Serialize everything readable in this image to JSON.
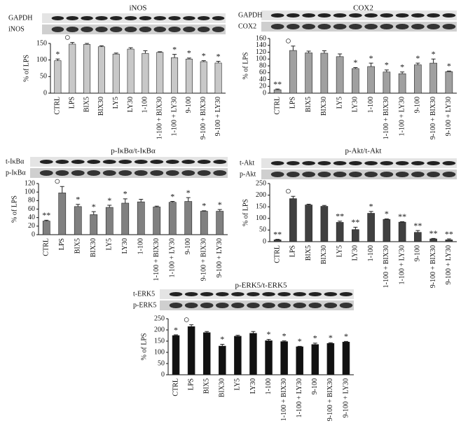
{
  "chart_data": [
    {
      "type": "bar",
      "title": "iNOS",
      "blot_labels": [
        "GAPDH",
        "iNOS"
      ],
      "y_label": "% of LPS",
      "color": "#c8c8c8",
      "categories": [
        "CTRL",
        "LPS",
        "BIX5",
        "BIX30",
        "LY5",
        "LY30",
        "1-100",
        "1-100 + BIX30",
        "1-100 + LY30",
        "9-100",
        "9-100 + BIX30",
        "9-100 + LY30"
      ],
      "values": [
        98,
        148,
        147,
        140,
        118,
        133,
        120,
        123,
        107,
        103,
        95,
        91
      ],
      "errors": [
        5,
        5,
        3,
        3,
        3,
        4,
        8,
        2,
        10,
        3,
        3,
        5
      ],
      "annotations": [
        "*",
        "○",
        null,
        null,
        null,
        null,
        null,
        null,
        "*",
        "*",
        "*",
        "*"
      ],
      "ylim": [
        0,
        150
      ],
      "yticks": [
        0,
        50,
        100,
        150
      ]
    },
    {
      "type": "bar",
      "title": "COX2",
      "blot_labels": [
        "GAPDH",
        "COX2"
      ],
      "y_label": "% of LPS",
      "color": "#a0a0a0",
      "categories": [
        "CTRL",
        "LPS",
        "BIX5",
        "BIX30",
        "LY5",
        "LY30",
        "1-100",
        "1-100 + BIX30",
        "1-100 + LY30",
        "9-100",
        "9-100 + BIX30",
        "9-100 + LY30"
      ],
      "values": [
        10,
        125,
        118,
        117,
        107,
        72,
        78,
        62,
        57,
        83,
        88,
        63
      ],
      "errors": [
        2,
        13,
        5,
        7,
        8,
        3,
        10,
        6,
        5,
        5,
        12,
        2
      ],
      "annotations": [
        "**",
        "○",
        null,
        null,
        null,
        "*",
        "*",
        "*",
        "*",
        "*",
        "*",
        "*"
      ],
      "ylim": [
        0,
        160
      ],
      "yticks": [
        0,
        20,
        40,
        60,
        80,
        100,
        120,
        140,
        160
      ]
    },
    {
      "type": "bar",
      "title": "p-IκBα/t-IκBα",
      "blot_labels": [
        "t-IκBα",
        "p-IκBα"
      ],
      "y_label": "% of LPS",
      "color": "#808080",
      "categories": [
        "CTRL",
        "LPS",
        "BIX5",
        "BIX30",
        "LY5",
        "LY30",
        "1-100",
        "1-100 + BIX30",
        "1-100 + LY30",
        "9-100",
        "9-100 + BIX30",
        "9-100 + LY30"
      ],
      "values": [
        32,
        98,
        66,
        47,
        64,
        74,
        77,
        65,
        76,
        78,
        55,
        55
      ],
      "errors": [
        2,
        15,
        5,
        7,
        5,
        10,
        6,
        2,
        2,
        9,
        1,
        4
      ],
      "annotations": [
        "**",
        "○",
        "*",
        "*",
        "*",
        "*",
        null,
        null,
        "*",
        "*",
        "*",
        "*"
      ],
      "ylim": [
        0,
        120
      ],
      "yticks": [
        0,
        20,
        40,
        60,
        80,
        100,
        120
      ]
    },
    {
      "type": "bar",
      "title": "p-Akt/t-Akt",
      "blot_labels": [
        "t-Akt",
        "p-Akt"
      ],
      "y_label": "% of LPS",
      "color": "#404040",
      "categories": [
        "CTRL",
        "LPS",
        "BIX5",
        "BIX30",
        "LY5",
        "LY30",
        "1-100",
        "1-100 + BIX30",
        "1-100 + LY30",
        "9-100",
        "9-100 + BIX30",
        "9-100 + LY30"
      ],
      "values": [
        8,
        185,
        158,
        152,
        83,
        52,
        122,
        96,
        84,
        40,
        12,
        8
      ],
      "errors": [
        2,
        10,
        3,
        4,
        5,
        10,
        8,
        2,
        2,
        8,
        2,
        4
      ],
      "annotations": [
        "**",
        "○",
        null,
        null,
        "**",
        "**",
        "*",
        "*",
        "**",
        "**",
        "**",
        "**"
      ],
      "ylim": [
        0,
        250
      ],
      "yticks": [
        0,
        50,
        100,
        150,
        200,
        250
      ]
    },
    {
      "type": "bar",
      "title": "p-ERK5/t-ERK5",
      "blot_labels": [
        "t-ERK5",
        "p-ERK5"
      ],
      "y_label": "% of LPS",
      "color": "#111111",
      "categories": [
        "CTRL",
        "LPS",
        "BIX5",
        "BIX30",
        "LY5",
        "LY30",
        "1-100",
        "1-100 + BIX30",
        "1-100 + LY30",
        "9-100",
        "9-100 + BIX30",
        "9-100 + LY30"
      ],
      "values": [
        175,
        215,
        188,
        128,
        172,
        185,
        152,
        148,
        125,
        135,
        140,
        146
      ],
      "errors": [
        3,
        8,
        5,
        8,
        4,
        8,
        6,
        3,
        2,
        6,
        3,
        3
      ],
      "annotations": [
        "*",
        "○",
        null,
        "*",
        null,
        null,
        "*",
        "*",
        "*",
        "*",
        "*",
        "*"
      ],
      "ylim": [
        0,
        250
      ],
      "yticks": [
        0,
        50,
        100,
        150,
        200,
        250
      ]
    }
  ]
}
